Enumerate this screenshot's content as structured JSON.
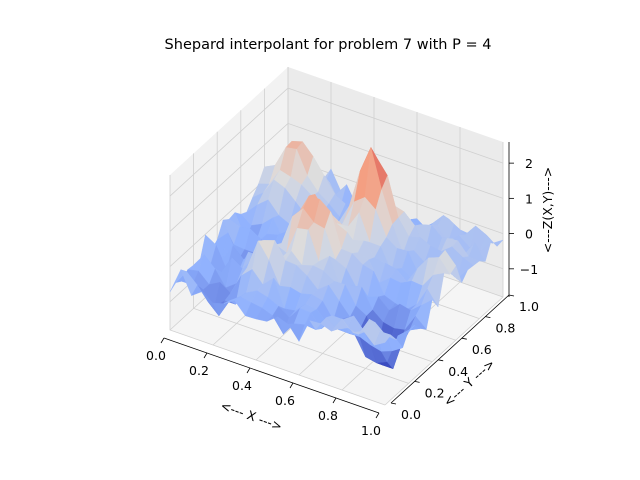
{
  "chart_data": {
    "type": "surface",
    "title": "Shepard interpolant for problem 7 with P = 4",
    "xlabel": "<--- X --->",
    "ylabel": "<--- Y --->",
    "zlabel": "<---Z(X,Y)--->",
    "xlim": [
      0,
      1
    ],
    "ylim": [
      0,
      1
    ],
    "zlim": [
      -1.8,
      2.6
    ],
    "x_ticks": [
      0.0,
      0.2,
      0.4,
      0.6,
      0.8,
      1.0
    ],
    "y_ticks": [
      0.0,
      0.2,
      0.4,
      0.6,
      0.8,
      1.0
    ],
    "z_ticks": [
      -1,
      0,
      1,
      2
    ],
    "x_tick_labels": [
      "0.0",
      "0.2",
      "0.4",
      "0.6",
      "0.8",
      "1.0"
    ],
    "y_tick_labels": [
      "0.0",
      "0.2",
      "0.4",
      "0.6",
      "0.8",
      "1.0"
    ],
    "z_tick_labels": [
      "−1",
      "0",
      "1",
      "2"
    ],
    "colormap": "coolwarm",
    "grid": true,
    "grid_size": [
      21,
      21
    ],
    "peaks": [
      {
        "x": 0.55,
        "y": 0.72,
        "z": 2.6
      },
      {
        "x": 0.42,
        "y": 0.45,
        "z": 1.8
      },
      {
        "x": 0.12,
        "y": 0.8,
        "z": 1.3
      },
      {
        "x": 0.3,
        "y": 0.22,
        "z": 1.0
      },
      {
        "x": 0.95,
        "y": 0.55,
        "z": 1.1
      },
      {
        "x": 0.85,
        "y": 0.25,
        "z": -1.5
      },
      {
        "x": 0.2,
        "y": 0.1,
        "z": -1.2
      }
    ]
  }
}
